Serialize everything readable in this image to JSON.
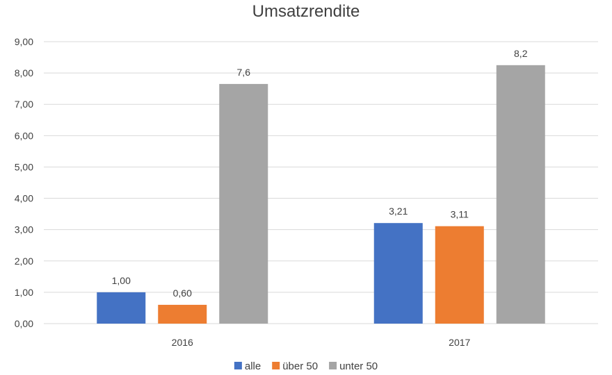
{
  "chart_data": {
    "type": "bar",
    "title": "Umsatzrendite",
    "xlabel": "",
    "ylabel": "",
    "categories": [
      "2016",
      "2017"
    ],
    "series": [
      {
        "name": "alle",
        "color": "#4472c4",
        "values": [
          1.0,
          3.21
        ],
        "labels": [
          "1,00",
          "3,21"
        ]
      },
      {
        "name": "über 50",
        "color": "#ed7d31",
        "values": [
          0.6,
          3.11
        ],
        "labels": [
          "0,60",
          "3,11"
        ]
      },
      {
        "name": "unter 50",
        "color": "#a5a5a5",
        "values": [
          7.65,
          8.25
        ],
        "labels": [
          "7,6",
          "8,2"
        ]
      }
    ],
    "ylim": [
      0,
      9
    ],
    "yticks": [
      0,
      1,
      2,
      3,
      4,
      5,
      6,
      7,
      8,
      9
    ],
    "ytick_labels": [
      "0,00",
      "1,00",
      "2,00",
      "3,00",
      "4,00",
      "5,00",
      "6,00",
      "7,00",
      "8,00",
      "9,00"
    ],
    "grid": true,
    "legend_position": "bottom"
  }
}
